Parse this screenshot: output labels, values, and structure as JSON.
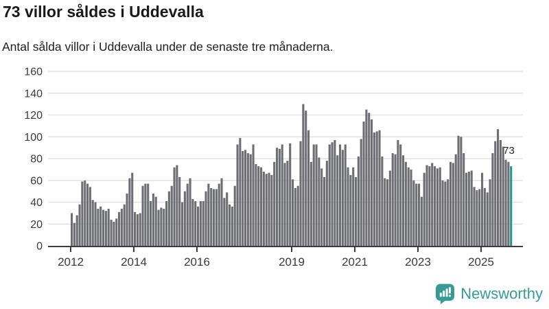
{
  "header": {
    "title": "73 villor såldes i Uddevalla",
    "subtitle": "Antal sålda villor i Uddevalla under de senaste tre månaderna."
  },
  "chart_data": {
    "type": "bar",
    "title": "73 villor såldes i Uddevalla",
    "subtitle": "Antal sålda villor i Uddevalla under de senaste tre månaderna.",
    "xlabel": "",
    "ylabel": "",
    "ylim": [
      0,
      160
    ],
    "ytick_step": 20,
    "yticks": [
      0,
      20,
      40,
      60,
      80,
      100,
      120,
      140,
      160
    ],
    "grid": true,
    "start_year": 2012,
    "months_per_bar": 1,
    "x_tick_years": [
      2012,
      2014,
      2016,
      2019,
      2021,
      2023,
      2025
    ],
    "x_tick_labels": [
      "2012",
      "2014",
      "2016",
      "2019",
      "2021",
      "2023",
      "2025"
    ],
    "values": [
      30,
      21,
      28,
      38,
      59,
      60,
      57,
      54,
      42,
      40,
      34,
      36,
      33,
      32,
      34,
      24,
      22,
      25,
      31,
      34,
      38,
      48,
      62,
      67,
      31,
      29,
      30,
      55,
      57,
      57,
      41,
      48,
      45,
      33,
      35,
      34,
      41,
      50,
      55,
      72,
      74,
      63,
      40,
      50,
      57,
      62,
      43,
      41,
      36,
      41,
      41,
      50,
      57,
      53,
      52,
      52,
      57,
      62,
      44,
      49,
      38,
      36,
      55,
      93,
      99,
      87,
      88,
      85,
      84,
      93,
      75,
      73,
      72,
      68,
      66,
      67,
      65,
      77,
      90,
      89,
      93,
      76,
      78,
      94,
      61,
      53,
      55,
      96,
      130,
      124,
      106,
      77,
      93,
      93,
      81,
      71,
      63,
      78,
      93,
      95,
      97,
      83,
      93,
      88,
      93,
      72,
      65,
      72,
      63,
      82,
      98,
      114,
      125,
      122,
      116,
      104,
      105,
      106,
      82,
      62,
      61,
      69,
      85,
      84,
      97,
      93,
      83,
      77,
      72,
      70,
      60,
      57,
      57,
      45,
      67,
      74,
      73,
      76,
      73,
      71,
      72,
      60,
      59,
      61,
      77,
      76,
      84,
      101,
      100,
      85,
      67,
      68,
      69,
      54,
      51,
      52,
      67,
      53,
      49,
      61,
      85,
      96,
      107,
      97,
      91,
      79,
      77,
      73
    ],
    "highlight_last": true,
    "last_value_label": "73",
    "bar_color": "#6d6d74",
    "highlight_color": "#219694",
    "grid_color": "#e2e2e2",
    "axis_color": "#3c3c3c",
    "tick_label_color": "#3a3a3a",
    "value_label_color": "#1f1f1f"
  },
  "footer": {
    "brand": "Newsworthy",
    "brand_color": "#369b94",
    "logo_icon": "bar-chart-speech-bubble"
  }
}
